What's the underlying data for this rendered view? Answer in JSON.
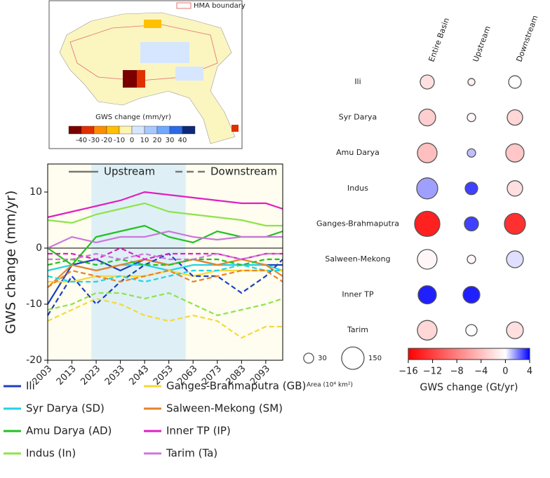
{
  "map": {
    "legend": "HMA boundary",
    "colorbar_label": "GWS change (mm/yr)",
    "ticks": [
      -40,
      -30,
      -20,
      -10,
      0,
      10,
      20,
      30,
      40
    ],
    "colors": [
      "#7a0000",
      "#e03000",
      "#ff8c00",
      "#ffc000",
      "#fff3b0",
      "#d6e6ff",
      "#a8c8ff",
      "#70a8ff",
      "#2a6ae8",
      "#102878"
    ]
  },
  "chart_data": [
    {
      "type": "line",
      "ylabel": "GWS change (mm/yr)",
      "x": [
        2003,
        2013,
        2023,
        2033,
        2043,
        2053,
        2063,
        2073,
        2083,
        2093,
        2100
      ],
      "xlim": [
        2003,
        2100
      ],
      "xticks": [
        2003,
        2013,
        2023,
        2033,
        2043,
        2053,
        2063,
        2073,
        2083,
        2093
      ],
      "ylim": [
        -20,
        15
      ],
      "yticks": [
        -20,
        -10,
        0,
        10
      ],
      "shaded_spans": [
        {
          "x": [
            2003,
            2021
          ],
          "color": "#fefdf0"
        },
        {
          "x": [
            2021,
            2060
          ],
          "color": "#def0f5"
        },
        {
          "x": [
            2060,
            2100
          ],
          "color": "#fefdf0"
        }
      ],
      "style_legend": [
        {
          "label": "Upstream",
          "dashed": false
        },
        {
          "label": "Downstream",
          "dashed": true
        }
      ],
      "basins": [
        {
          "name": "Ili",
          "color": "#1f3fbf"
        },
        {
          "name": "Syr Darya (SD)",
          "color": "#22d3e6"
        },
        {
          "name": "Amu Darya (AD)",
          "color": "#22c022"
        },
        {
          "name": "Indus (In)",
          "color": "#8fe34a"
        },
        {
          "name": "Ganges-Brahmaputra (GB)",
          "color": "#f5d83a"
        },
        {
          "name": "Salween-Mekong (SM)",
          "color": "#e8822a"
        },
        {
          "name": "Inner TP (IP)",
          "color": "#e020c0"
        },
        {
          "name": "Tarim (Ta)",
          "color": "#cc77dd"
        }
      ],
      "series": [
        {
          "basin": 6,
          "dashed": false,
          "values": [
            5.5,
            6.5,
            7.5,
            8.5,
            10,
            9.5,
            9,
            8.5,
            8,
            8,
            7
          ]
        },
        {
          "basin": 3,
          "dashed": false,
          "values": [
            5,
            4.5,
            6,
            7,
            8,
            6.5,
            6,
            5.5,
            5,
            4,
            4
          ]
        },
        {
          "basin": 2,
          "dashed": false,
          "values": [
            0,
            -3,
            2,
            3,
            4,
            2,
            1,
            3,
            2,
            2,
            3
          ]
        },
        {
          "basin": 7,
          "dashed": false,
          "values": [
            0,
            2,
            1,
            2,
            2,
            3,
            2,
            1.5,
            2,
            2,
            2
          ]
        },
        {
          "basin": 0,
          "dashed": false,
          "values": [
            -10,
            -3,
            -2,
            -4,
            -2,
            -3,
            -2,
            -3,
            -3,
            -3,
            -3
          ]
        },
        {
          "basin": 1,
          "dashed": false,
          "values": [
            -4,
            -3,
            -4,
            -3,
            -3,
            -4,
            -3,
            -3,
            -3,
            -3,
            -4
          ]
        },
        {
          "basin": 5,
          "dashed": false,
          "values": [
            -7,
            -3,
            -4,
            -3,
            -2,
            -3,
            -2,
            -3,
            -2,
            -3,
            -5
          ]
        },
        {
          "basin": 4,
          "dashed": false,
          "values": [
            -6,
            -6,
            -5,
            -5,
            -5,
            -4,
            -5,
            -4,
            -4,
            -4,
            -4
          ]
        },
        {
          "basin": 0,
          "dashed": true,
          "values": [
            -12,
            -5,
            -10,
            -6,
            -3,
            -1,
            -5,
            -5,
            -8,
            -5,
            -2
          ]
        },
        {
          "basin": 1,
          "dashed": true,
          "values": [
            -5,
            -6,
            -6,
            -5,
            -6,
            -5,
            -4,
            -4,
            -3,
            -4,
            -4
          ]
        },
        {
          "basin": 2,
          "dashed": true,
          "values": [
            -3,
            -2,
            -3,
            -2,
            -3,
            -3,
            -2,
            -2,
            -3,
            -2,
            -2
          ]
        },
        {
          "basin": 3,
          "dashed": true,
          "values": [
            -11,
            -10,
            -8,
            -8,
            -9,
            -8,
            -10,
            -12,
            -11,
            -10,
            -9
          ]
        },
        {
          "basin": 4,
          "dashed": true,
          "values": [
            -13,
            -11,
            -9,
            -10,
            -12,
            -13,
            -12,
            -13,
            -16,
            -14,
            -14
          ]
        },
        {
          "basin": 5,
          "dashed": true,
          "values": [
            -7,
            -4,
            -5,
            -6,
            -5,
            -4,
            -6,
            -5,
            -4,
            -4,
            -6
          ]
        },
        {
          "basin": 6,
          "dashed": true,
          "values": [
            -1,
            -1,
            -2,
            0,
            -2,
            -1,
            -1,
            -1,
            -2,
            -1,
            -1
          ]
        },
        {
          "basin": 7,
          "dashed": true,
          "values": [
            -2,
            -2,
            -1,
            -2,
            -1,
            -2,
            -2,
            -1,
            -2,
            -1,
            -1
          ]
        }
      ]
    },
    {
      "type": "bubble",
      "rows": [
        "Ili",
        "Syr Darya",
        "Amu Darya",
        "Indus",
        "Ganges-Brahmaputra",
        "Salween-Mekong",
        "Inner TP",
        "Tarim"
      ],
      "columns": [
        "Entire Basin",
        "Upstream",
        "Downstream"
      ],
      "sizes": [
        [
          59,
          15,
          47
        ],
        [
          84,
          21,
          71
        ],
        [
          115,
          21,
          99
        ],
        [
          132,
          47,
          71
        ],
        [
          190,
          59,
          132
        ],
        [
          115,
          21,
          84
        ],
        [
          99,
          84,
          null
        ],
        [
          115,
          38,
          84
        ]
      ],
      "values": [
        [
          -2,
          -1,
          0
        ],
        [
          -3,
          -0.5,
          -2.5
        ],
        [
          -4,
          1,
          -3.5
        ],
        [
          1.5,
          3,
          -2
        ],
        [
          -14,
          3,
          -13
        ],
        [
          -0.5,
          -0.5,
          0.5
        ],
        [
          3.5,
          3.5,
          null
        ],
        [
          -2.5,
          0,
          -2
        ]
      ],
      "size_legend": [
        30,
        150
      ],
      "size_legend_label": "Area (10⁴ km²)",
      "clim": [
        -16,
        4
      ],
      "colors": [
        "#ff0000",
        "#ffffff",
        "#0000ff"
      ],
      "cticks": [
        {
          "value": -16,
          "label": "−16"
        },
        {
          "value": -12,
          "label": "−12"
        },
        {
          "value": -8,
          "label": "−8"
        },
        {
          "value": -4,
          "label": "−4"
        },
        0,
        4
      ],
      "clabel": "GWS change (Gt/yr)"
    }
  ]
}
